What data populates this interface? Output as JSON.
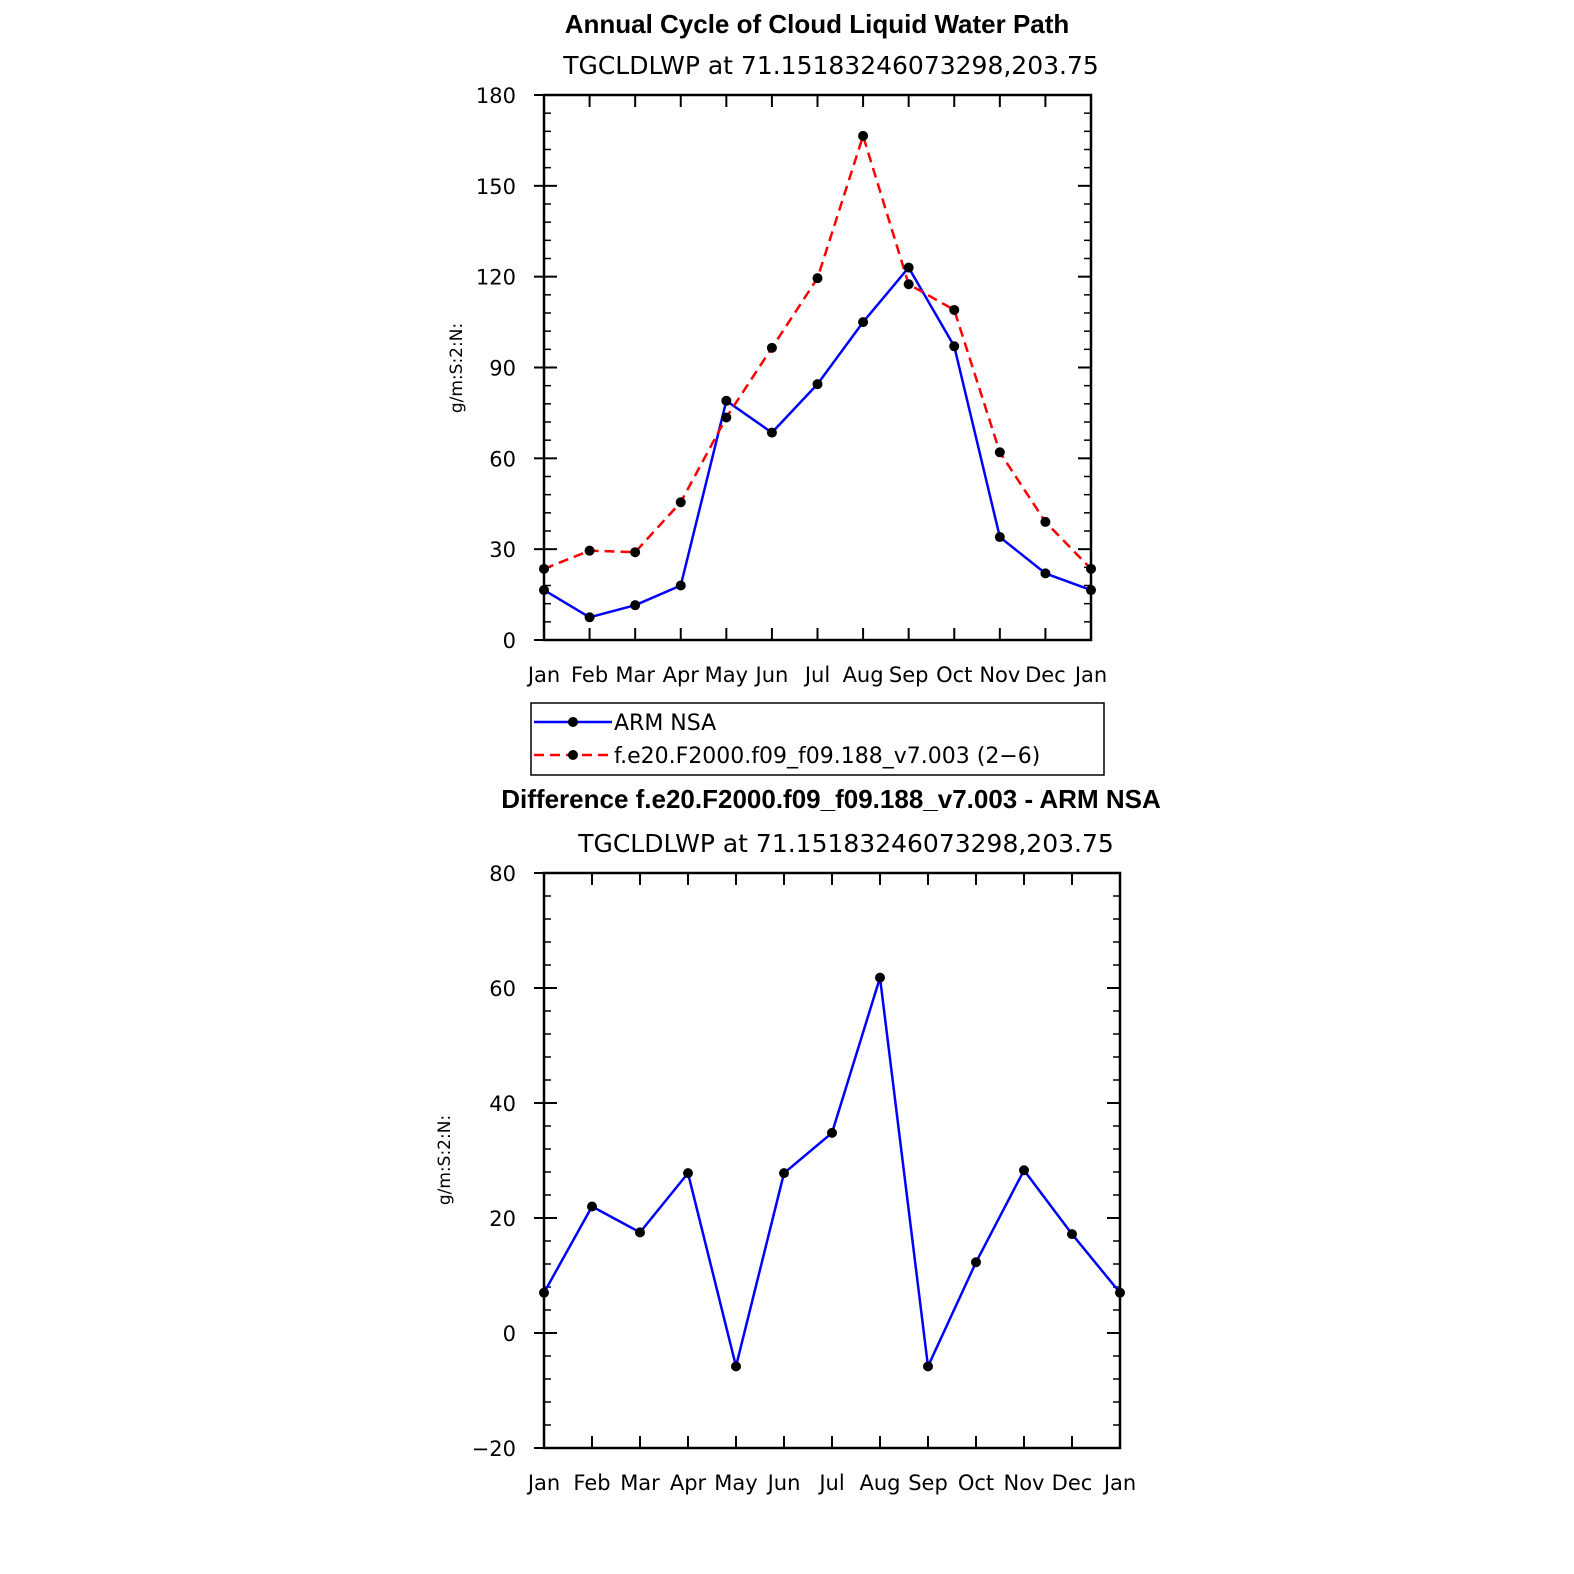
{
  "chart_data": [
    {
      "type": "line",
      "title": "Annual Cycle of Cloud Liquid Water Path",
      "subtitle": "TGCLDLWP  at  71.15183246073298,203.75",
      "ylabel": "g/m:S:2:N:",
      "categories": [
        "Jan",
        "Feb",
        "Mar",
        "Apr",
        "May",
        "Jun",
        "Jul",
        "Aug",
        "Sep",
        "Oct",
        "Nov",
        "Dec",
        "Jan"
      ],
      "ylim": [
        0,
        180
      ],
      "yticks": [
        0,
        30,
        60,
        90,
        120,
        150,
        180
      ],
      "grid": false,
      "legend_position": "bottom",
      "series": [
        {
          "name": "ARM  NSA",
          "color": "#0000ff",
          "dash": "solid",
          "values": [
            16.5,
            7.5,
            11.5,
            18,
            79,
            68.5,
            84.5,
            105,
            123,
            97,
            34,
            22,
            16.5
          ]
        },
        {
          "name": "f.e20.F2000.f09_f09.188_v7.003 (2−6)",
          "color": "#ff0000",
          "dash": "dashed",
          "values": [
            23.5,
            29.5,
            29,
            45.5,
            73.5,
            96.5,
            119.5,
            166.5,
            117.5,
            109,
            62,
            39,
            23.5
          ]
        }
      ]
    },
    {
      "type": "line",
      "title": "Difference f.e20.F2000.f09_f09.188_v7.003 - ARM NSA",
      "subtitle": "TGCLDLWP  at  71.15183246073298,203.75",
      "ylabel": "g/m:S:2:N:",
      "categories": [
        "Jan",
        "Feb",
        "Mar",
        "Apr",
        "May",
        "Jun",
        "Jul",
        "Aug",
        "Sep",
        "Oct",
        "Nov",
        "Dec",
        "Jan"
      ],
      "ylim": [
        -20,
        80
      ],
      "yticks": [
        -20,
        0,
        20,
        40,
        60,
        80
      ],
      "ytick_labels": [
        "−20",
        "0",
        "20",
        "40",
        "60",
        "80"
      ],
      "grid": false,
      "series": [
        {
          "color": "#0000ff",
          "dash": "solid",
          "values": [
            7,
            22,
            17.5,
            27.8,
            -5.8,
            27.8,
            34.8,
            61.8,
            -5.8,
            12.3,
            28.3,
            17.2,
            7
          ]
        }
      ]
    }
  ]
}
